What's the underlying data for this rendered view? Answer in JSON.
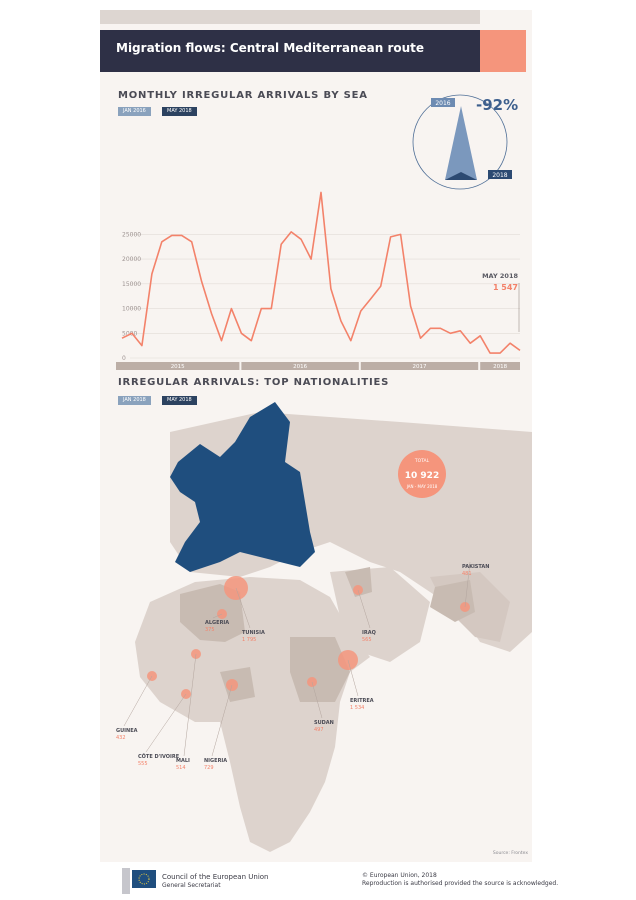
{
  "header": {
    "title": "Migration flows: Central Mediterranean route"
  },
  "section1": {
    "title": "MONTHLY IRREGULAR ARRIVALS BY SEA",
    "tag_from": "JAN 2016",
    "tag_to": "MAY 2018",
    "change": {
      "value": "-92%",
      "from_label": "2016",
      "to_label": "2018"
    },
    "callout": {
      "label": "MAY 2018",
      "value": "1 547"
    }
  },
  "chart_data": {
    "type": "line",
    "x": [
      "2015-01",
      "2015-02",
      "2015-03",
      "2015-04",
      "2015-05",
      "2015-06",
      "2015-07",
      "2015-08",
      "2015-09",
      "2015-10",
      "2015-11",
      "2015-12",
      "2016-01",
      "2016-02",
      "2016-03",
      "2016-04",
      "2016-05",
      "2016-06",
      "2016-07",
      "2016-08",
      "2016-09",
      "2016-10",
      "2016-11",
      "2016-12",
      "2017-01",
      "2017-02",
      "2017-03",
      "2017-04",
      "2017-05",
      "2017-06",
      "2017-07",
      "2017-08",
      "2017-09",
      "2017-10",
      "2017-11",
      "2017-12",
      "2018-01",
      "2018-02",
      "2018-03",
      "2018-04",
      "2018-05"
    ],
    "series": [
      {
        "values": [
          4000,
          5000,
          2500,
          17000,
          23500,
          24800,
          24800,
          23500,
          15500,
          9000,
          3500,
          10000,
          5000,
          3500,
          10000,
          10000,
          23000,
          25500,
          24000,
          20000,
          33500,
          14000,
          7500,
          3500,
          9500,
          12000,
          14500,
          24500,
          25000,
          10500,
          4000,
          6000,
          6000,
          5000,
          5500,
          3000,
          4500,
          1000,
          1000,
          3000,
          1547
        ]
      }
    ],
    "year_labels": [
      "2015",
      "2016",
      "2017",
      "2018"
    ],
    "yticks": [
      0,
      5000,
      10000,
      15000,
      20000,
      25000
    ],
    "ytick_labels": [
      "0",
      "5000",
      "10000",
      "15000",
      "20000",
      "25000"
    ],
    "ylim": [
      0,
      36000
    ],
    "grid": true
  },
  "section2": {
    "title": "IRREGULAR ARRIVALS: TOP NATIONALITIES",
    "tag_from": "JAN 2018",
    "tag_to": "MAY 2018",
    "total_label": "TOTAL",
    "total_value": "10 922",
    "total_sub": "JAN - MAY 2018"
  },
  "nationalities": [
    {
      "name": "ALGERIA",
      "value": "375"
    },
    {
      "name": "TUNISIA",
      "value": "1 795"
    },
    {
      "name": "IRAQ",
      "value": "565"
    },
    {
      "name": "PAKISTAN",
      "value": "481"
    },
    {
      "name": "ERITREA",
      "value": "1 534"
    },
    {
      "name": "SUDAN",
      "value": "497"
    },
    {
      "name": "GUINEA",
      "value": "432"
    },
    {
      "name": "CÔTE D'IVOIRE",
      "value": "555"
    },
    {
      "name": "MALI",
      "value": "514"
    },
    {
      "name": "NIGERIA",
      "value": "729"
    }
  ],
  "source": "Source: Frontex",
  "footer": {
    "org_line1": "Council of the European Union",
    "org_line2": "General Secretariat",
    "copyright": "© European Union, 2018",
    "reproduction": "Reproduction is authorised provided the source is acknowledged."
  },
  "colors": {
    "navy": "#2e3046",
    "accent": "#f5957c",
    "eu_blue": "#1f4e7e",
    "land": "#ddd3cd",
    "line": "#f3826a"
  }
}
